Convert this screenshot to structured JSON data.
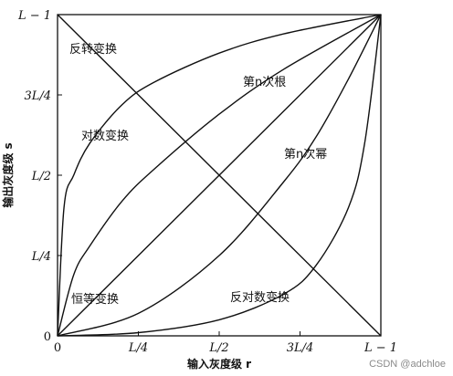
{
  "chart_data": {
    "type": "line",
    "xlabel": "输入灰度级 r",
    "ylabel": "输出灰度级 s",
    "xlim": [
      0,
      1
    ],
    "ylim": [
      0,
      1
    ],
    "x_ticks": [
      "0",
      "L/4",
      "L/2",
      "3L/4",
      "L − 1"
    ],
    "y_ticks": [
      "0",
      "L/4",
      "L/2",
      "3L/4",
      "L − 1"
    ],
    "grid": false,
    "series": [
      {
        "name": "反转变换",
        "x": [
          0,
          1
        ],
        "y": [
          1,
          0
        ]
      },
      {
        "name": "对数变换",
        "x": [
          0,
          0.02,
          0.05,
          0.1,
          0.2,
          0.3,
          0.5,
          0.7,
          1
        ],
        "y": [
          0,
          0.4,
          0.5,
          0.6,
          0.72,
          0.79,
          0.88,
          0.94,
          1
        ]
      },
      {
        "name": "第n次根",
        "x": [
          0,
          0.05,
          0.1,
          0.2,
          0.3,
          0.5,
          0.7,
          1
        ],
        "y": [
          0,
          0.19,
          0.28,
          0.42,
          0.52,
          0.69,
          0.83,
          1
        ]
      },
      {
        "name": "恒等变换",
        "x": [
          0,
          1
        ],
        "y": [
          0,
          1
        ]
      },
      {
        "name": "第n次幂",
        "x": [
          0,
          0.25,
          0.5,
          0.7,
          0.8,
          0.9,
          1
        ],
        "y": [
          0,
          0.07,
          0.25,
          0.48,
          0.62,
          0.8,
          1
        ]
      },
      {
        "name": "反对数变换",
        "x": [
          0,
          0.25,
          0.5,
          0.7,
          0.8,
          0.9,
          0.95,
          1
        ],
        "y": [
          0,
          0.01,
          0.05,
          0.13,
          0.22,
          0.4,
          0.6,
          1
        ]
      }
    ]
  },
  "watermark": "CSDN @adchloe"
}
